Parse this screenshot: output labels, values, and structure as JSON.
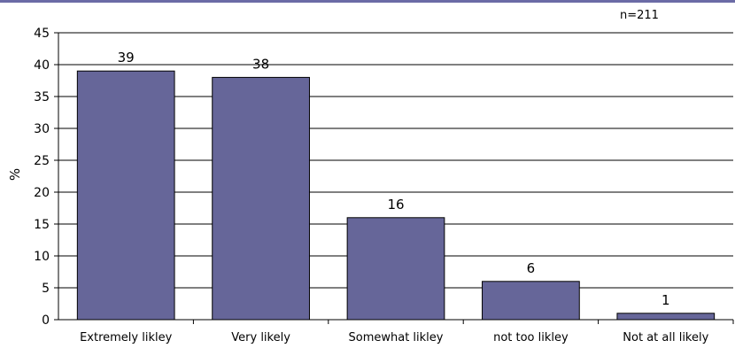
{
  "chart_data": {
    "type": "bar",
    "title": "",
    "xlabel": "",
    "ylabel": "%",
    "ylim": [
      0,
      45
    ],
    "yticks": [
      0,
      5,
      10,
      15,
      20,
      25,
      30,
      35,
      40,
      45
    ],
    "grid": true,
    "annotation": "n=211",
    "categories": [
      "Extremely likley",
      "Very likely",
      "Somewhat likley",
      "not too likley",
      "Not at all likely"
    ],
    "values": [
      39,
      38,
      16,
      6,
      1
    ],
    "data_labels": [
      "39",
      "38",
      "16",
      "6",
      "1"
    ],
    "colors": {
      "bar_fill": "#666699",
      "bar_stroke": "#000000",
      "top_rule": "#6b6ba6",
      "axis": "#000000",
      "grid": "#000000"
    }
  }
}
